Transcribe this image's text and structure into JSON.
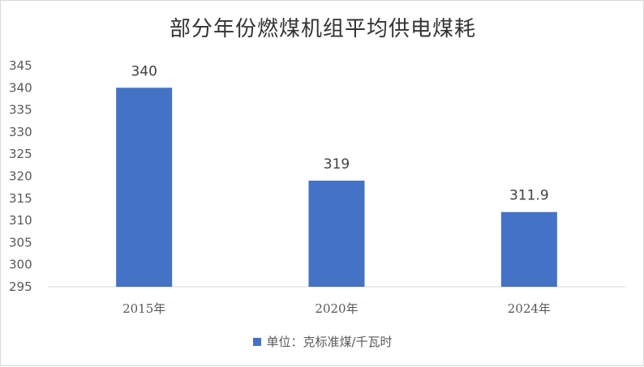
{
  "chart_data": {
    "type": "bar",
    "title": "部分年份燃煤机组平均供电煤耗",
    "categories": [
      "2015年",
      "2020年",
      "2024年"
    ],
    "series": [
      {
        "name": "单位：克标准煤/千瓦时",
        "values": [
          340,
          319,
          311.9
        ],
        "color": "#4472c4"
      }
    ],
    "data_labels": [
      "340",
      "319",
      "311.9"
    ],
    "ylim": [
      295,
      345
    ],
    "yticks": [
      "295",
      "300",
      "305",
      "310",
      "315",
      "320",
      "325",
      "330",
      "335",
      "340",
      "345"
    ],
    "grid": false,
    "legend_position": "bottom"
  }
}
